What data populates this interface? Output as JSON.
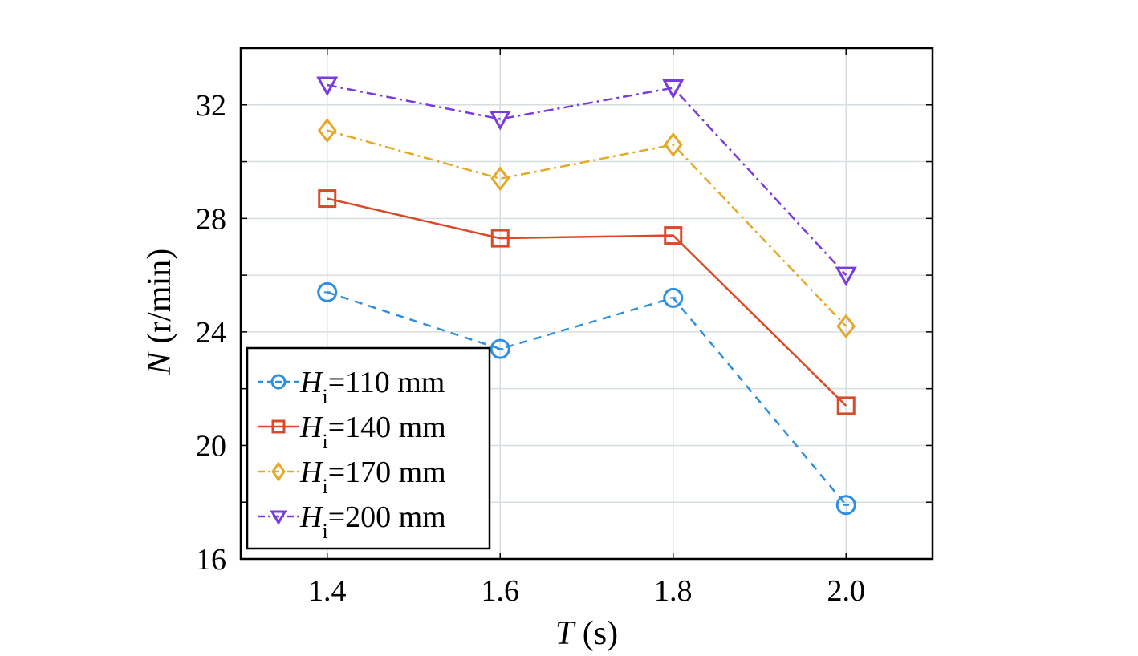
{
  "chart_data": {
    "type": "line",
    "x": [
      1.4,
      1.6,
      1.8,
      2.0
    ],
    "xticks": [
      "1.4",
      "1.6",
      "1.8",
      "2.0"
    ],
    "yticks": [
      "16",
      "20",
      "24",
      "28",
      "32"
    ],
    "xlim": [
      1.3,
      2.1
    ],
    "ylim": [
      16,
      34
    ],
    "xlabel": {
      "var": "T",
      "unit": " (s)"
    },
    "ylabel": {
      "var": "N",
      "unit": " (r/min)"
    },
    "grid": true,
    "legend_position": "bottom-left",
    "series": [
      {
        "name": "Hi=110 mm",
        "label_var": "H",
        "label_sub": "i",
        "label_rest": "=110 mm",
        "values": [
          25.4,
          23.4,
          25.2,
          17.9
        ],
        "color": "#2e8fe0",
        "marker": "circle",
        "dash": "10 8"
      },
      {
        "name": "Hi=140 mm",
        "label_var": "H",
        "label_sub": "i",
        "label_rest": "=140 mm",
        "values": [
          28.7,
          27.3,
          27.4,
          21.4
        ],
        "color": "#d84a28",
        "marker": "square",
        "dash": ""
      },
      {
        "name": "Hi=170 mm",
        "label_var": "H",
        "label_sub": "i",
        "label_rest": "=170 mm",
        "values": [
          31.1,
          29.4,
          30.6,
          24.2
        ],
        "color": "#e5a92a",
        "marker": "diamond",
        "dash": "12 5 3 5"
      },
      {
        "name": "Hi=200 mm",
        "label_var": "H",
        "label_sub": "i",
        "label_rest": "=200 mm",
        "values": [
          32.7,
          31.5,
          32.6,
          26.0
        ],
        "color": "#7a3be0",
        "marker": "triangle-down",
        "dash": "12 5 3 5"
      }
    ]
  }
}
